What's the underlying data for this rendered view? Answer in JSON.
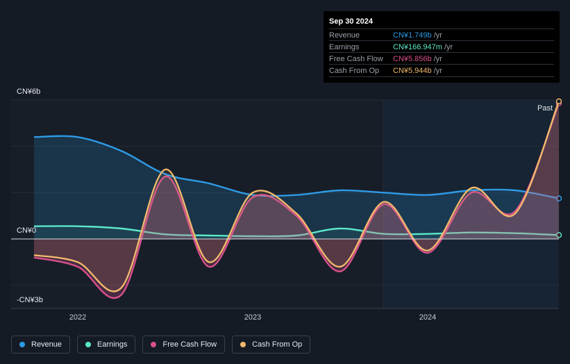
{
  "tooltip": {
    "date": "Sep 30 2024",
    "rows": [
      {
        "label": "Revenue",
        "value": "CN¥1.749b",
        "unit": " /yr",
        "color": "#2e9be6"
      },
      {
        "label": "Earnings",
        "value": "CN¥166.947m",
        "unit": " /yr",
        "color": "#5ce8c8"
      },
      {
        "label": "Free Cash Flow",
        "value": "CN¥5.856b",
        "unit": " /yr",
        "color": "#d9508c"
      },
      {
        "label": "Cash From Op",
        "value": "CN¥5.944b",
        "unit": " /yr",
        "color": "#f0b86c"
      }
    ]
  },
  "past_label": "Past",
  "chart_data": {
    "type": "area",
    "y_ticks": [
      "CN¥6b",
      "CN¥0",
      "-CN¥3b"
    ],
    "x_ticks": [
      "2022",
      "2023",
      "2024"
    ],
    "ylim": [
      -3,
      6
    ],
    "series": [
      {
        "name": "Revenue",
        "color": "#2e9be6",
        "x": [
          2021.75,
          2022.0,
          2022.25,
          2022.5,
          2022.75,
          2023.0,
          2023.25,
          2023.5,
          2023.75,
          2024.0,
          2024.25,
          2024.5,
          2024.75
        ],
        "values": [
          4.4,
          4.4,
          3.8,
          2.8,
          2.4,
          1.9,
          1.9,
          2.1,
          2.0,
          1.9,
          2.1,
          2.1,
          1.75
        ]
      },
      {
        "name": "Earnings",
        "color": "#5ce8c8",
        "x": [
          2021.75,
          2022.0,
          2022.25,
          2022.5,
          2022.75,
          2023.0,
          2023.25,
          2023.5,
          2023.75,
          2024.0,
          2024.25,
          2024.5,
          2024.75
        ],
        "values": [
          0.55,
          0.55,
          0.45,
          0.2,
          0.15,
          0.12,
          0.15,
          0.45,
          0.22,
          0.22,
          0.28,
          0.25,
          0.17
        ]
      },
      {
        "name": "Free Cash Flow",
        "color": "#d9508c",
        "x": [
          2021.75,
          2022.0,
          2022.25,
          2022.5,
          2022.75,
          2023.0,
          2023.25,
          2023.5,
          2023.75,
          2024.0,
          2024.25,
          2024.5,
          2024.75
        ],
        "values": [
          -0.8,
          -1.2,
          -2.4,
          2.7,
          -1.2,
          1.8,
          1.0,
          -1.4,
          1.5,
          -0.6,
          2.0,
          1.2,
          5.856
        ]
      },
      {
        "name": "Cash From Op",
        "color": "#f0b86c",
        "x": [
          2021.75,
          2022.0,
          2022.25,
          2022.5,
          2022.75,
          2023.0,
          2023.25,
          2023.5,
          2023.75,
          2024.0,
          2024.25,
          2024.5,
          2024.75
        ],
        "values": [
          -0.7,
          -1.0,
          -2.1,
          3.0,
          -1.0,
          2.0,
          1.1,
          -1.2,
          1.6,
          -0.5,
          2.2,
          1.1,
          5.944
        ]
      }
    ]
  },
  "legend": [
    {
      "label": "Revenue",
      "color": "#2e9be6"
    },
    {
      "label": "Earnings",
      "color": "#5ce8c8"
    },
    {
      "label": "Free Cash Flow",
      "color": "#d9508c"
    },
    {
      "label": "Cash From Op",
      "color": "#f0b86c"
    }
  ]
}
